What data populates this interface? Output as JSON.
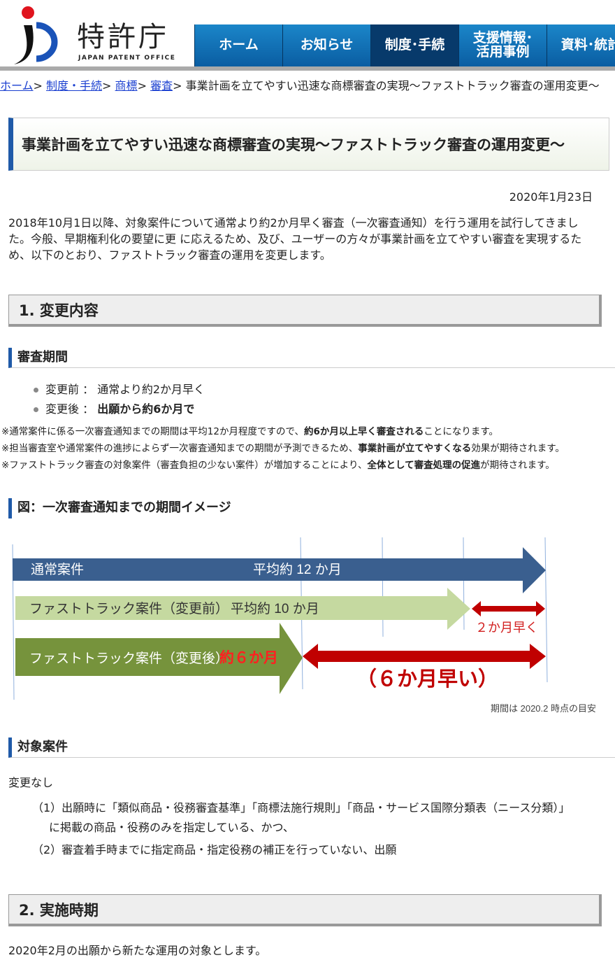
{
  "header": {
    "logo_name": "特許庁",
    "logo_sub": "JAPAN PATENT OFFICE",
    "nav": [
      "ホーム",
      "お知らせ",
      "制度･手続",
      "支援情報･\n活用事例",
      "資料･統計"
    ],
    "active_nav": 2
  },
  "breadcrumb": {
    "links": [
      "ホーム",
      "制度・手続",
      "商標",
      "審査"
    ],
    "sep": ">",
    "current": "事業計画を立てやすい迅速な商標審査の実現～ファストトラック審査の運用変更～"
  },
  "title": "事業計画を立てやすい迅速な商標審査の実現～ファストトラック審査の運用変更～",
  "date": "2020年1月23日",
  "intro": "2018年10月1日以降、対象案件について通常より約2か月早く審査（一次審査通知）を行う運用を試行してきました。今般、早期権利化の要望に更 に応えるため、及び、ユーザーの方々が事業計画を立てやすい審査を実現するため、以下のとおり、ファストトラック審査の運用を変更します。",
  "section1": {
    "heading": "1. 変更内容",
    "period": {
      "heading": "審査期間",
      "before_label": "変更前 ： ",
      "before_value": "通常より約2か月早く",
      "after_label": "変更後 ： ",
      "after_value": "出願から約6か月で"
    },
    "notes": [
      {
        "a": "※通常案件に係る一次審査通知までの期間は平均12か月程度ですので、",
        "b": "約6か月以上早く審査される",
        "c": "ことになります。"
      },
      {
        "a": "※担当審査室や通常案件の進捗によらず一次審査通知までの期間が予測できるため、",
        "b": "事業計画が立てやすくなる",
        "c": "効果が期待されます。"
      },
      {
        "a": "※ファストトラック審査の対象案件（審査負担の少ない案件）が増加することにより、",
        "b": "全体として審査処理の促進",
        "c": "が期待されます。"
      }
    ],
    "figure": {
      "heading": "図：一次審査通知までの期間イメージ",
      "row1_label": "通常案件",
      "row1_value": "平均約 12 か月",
      "row2_label": "ファストトラック案件（変更前）",
      "row2_value": "平均約 10 か月",
      "row2_diff": "２か月早く",
      "row3_label": "ファストトラック案件（変更後）",
      "row3_value": "約６か月",
      "row3_diff": "（６か月早い）",
      "caption": "期間は 2020.2 時点の目安",
      "colors": {
        "normal": "#3a5f8f",
        "before": "#c5d9a0",
        "after": "#76933c",
        "diff": "#c00000"
      }
    },
    "target": {
      "heading": "対象案件",
      "none": "変更なし",
      "item1a": "（1）出願時に「類似商品・役務審査基準」「商標法施行規則」｢商品・サービス国際分類表（ニース分類）」",
      "item1b": "に掲載の商品・役務のみを指定している、かつ、",
      "item2": "（2）審査着手時までに指定商品・指定役務の補正を行っていない、出願"
    }
  },
  "section2": {
    "heading": "2. 実施時期",
    "text": "2020年2月の出願から新たな運用の対象とします。"
  }
}
